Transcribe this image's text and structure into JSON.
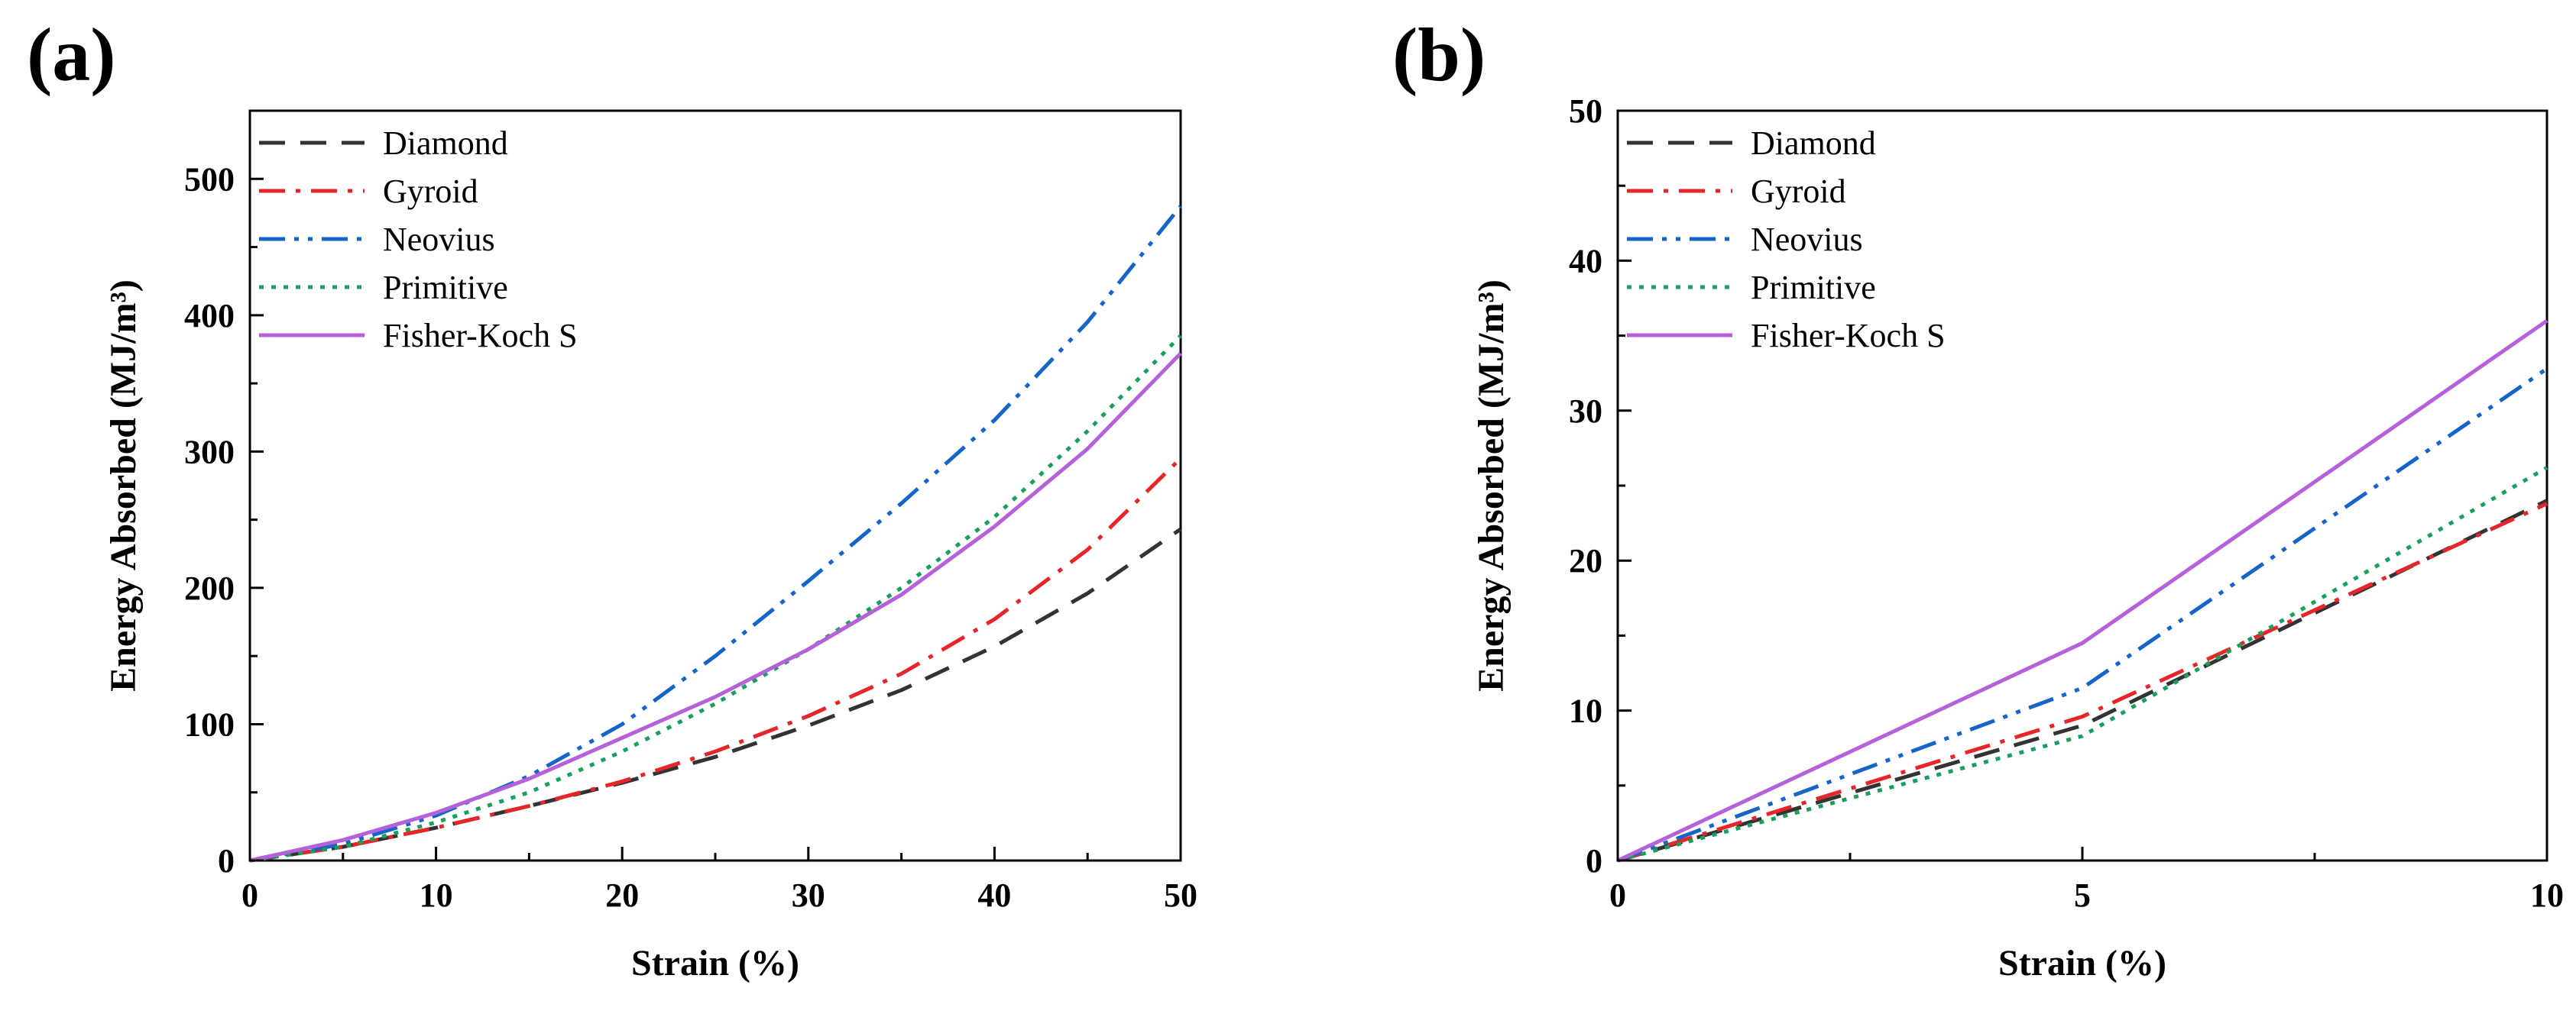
{
  "chart_data": [
    {
      "type": "line",
      "panel_label": "(a)",
      "xlabel": "Strain (%)",
      "ylabel": "Energy Absorbed (MJ/m³)",
      "xlim": [
        0,
        50
      ],
      "ylim": [
        0,
        550
      ],
      "xticks": [
        0,
        10,
        20,
        30,
        40,
        50
      ],
      "yticks": [
        0,
        100,
        200,
        300,
        400,
        500
      ],
      "grid": false,
      "legend_position": "top-left",
      "x": [
        0,
        5,
        10,
        15,
        20,
        25,
        30,
        35,
        40,
        45,
        50
      ],
      "series": [
        {
          "name": "Diamond",
          "color": "#333333",
          "dash": "dash",
          "values": [
            0,
            10,
            24,
            40,
            57,
            76,
            99,
            125,
            157,
            196,
            243
          ]
        },
        {
          "name": "Gyroid",
          "color": "#e8262a",
          "dash": "dashdot",
          "values": [
            0,
            10,
            24,
            40,
            58,
            80,
            106,
            137,
            177,
            228,
            295
          ]
        },
        {
          "name": "Neovius",
          "color": "#1565c8",
          "dash": "dashdotdot",
          "values": [
            0,
            12,
            33,
            62,
            100,
            150,
            205,
            262,
            323,
            395,
            480
          ]
        },
        {
          "name": "Primitive",
          "color": "#1a9e5c",
          "dash": "dot",
          "values": [
            0,
            10,
            28,
            50,
            80,
            115,
            155,
            200,
            252,
            315,
            385
          ]
        },
        {
          "name": "Fisher-Koch S",
          "color": "#b561d9",
          "dash": "solid",
          "values": [
            0,
            15,
            35,
            60,
            90,
            120,
            155,
            195,
            245,
            302,
            372
          ]
        }
      ]
    },
    {
      "type": "line",
      "panel_label": "(b)",
      "xlabel": "Strain (%)",
      "ylabel": "Energy Absorbed (MJ/m³)",
      "xlim": [
        0,
        10
      ],
      "ylim": [
        0,
        50
      ],
      "xticks": [
        0,
        5,
        10
      ],
      "yticks": [
        0,
        10,
        20,
        30,
        40,
        50
      ],
      "grid": false,
      "legend_position": "top-left",
      "x": [
        0,
        5,
        10
      ],
      "series": [
        {
          "name": "Diamond",
          "color": "#333333",
          "dash": "dash",
          "values": [
            0,
            9,
            24
          ]
        },
        {
          "name": "Gyroid",
          "color": "#e8262a",
          "dash": "dashdot",
          "values": [
            0,
            9.6,
            23.8
          ]
        },
        {
          "name": "Neovius",
          "color": "#1565c8",
          "dash": "dashdotdot",
          "values": [
            0,
            11.5,
            32.8
          ]
        },
        {
          "name": "Primitive",
          "color": "#1a9e5c",
          "dash": "dot",
          "values": [
            0,
            8.3,
            26.2
          ]
        },
        {
          "name": "Fisher-Koch S",
          "color": "#b561d9",
          "dash": "solid",
          "values": [
            0,
            14.5,
            36
          ]
        }
      ]
    }
  ]
}
